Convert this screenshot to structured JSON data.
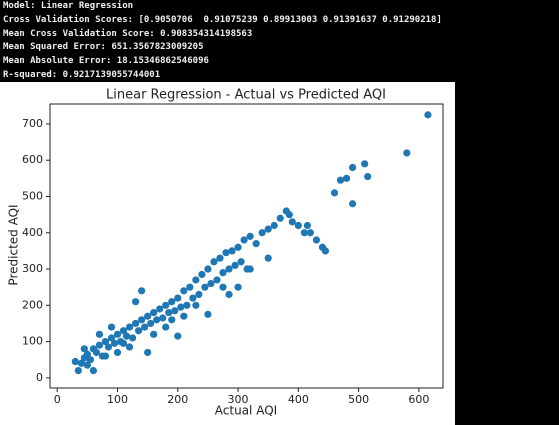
{
  "output_lines": [
    "Model: Linear Regression",
    "Cross Validation Scores: [0.9050706  0.91075239 0.89913003 0.91391637 0.91290218]",
    "Mean Cross Validation Score: 0.908354314198563",
    "Mean Squared Error: 651.3567823009205",
    "Mean Absolute Error: 18.15346862546096",
    "R-squared: 0.9217139055744001"
  ],
  "chart_data": {
    "type": "scatter",
    "title": "Linear Regression - Actual vs Predicted AQI",
    "x_label": "Actual AQI",
    "y_label": "Predicted AQI",
    "color": "#1f77b4",
    "x": [
      30,
      35,
      40,
      45,
      50,
      55,
      60,
      65,
      70,
      75,
      80,
      85,
      90,
      95,
      100,
      105,
      110,
      115,
      120,
      125,
      130,
      135,
      140,
      145,
      150,
      155,
      160,
      165,
      170,
      175,
      180,
      185,
      190,
      195,
      200,
      205,
      210,
      215,
      220,
      225,
      230,
      235,
      240,
      245,
      250,
      255,
      260,
      265,
      270,
      275,
      280,
      285,
      290,
      295,
      300,
      305,
      310,
      315,
      320,
      330,
      340,
      350,
      360,
      370,
      380,
      385,
      390,
      400,
      410,
      415,
      420,
      430,
      440,
      445,
      460,
      470,
      480,
      490,
      490,
      510,
      515,
      580,
      615,
      140,
      130,
      60,
      200,
      150,
      100,
      120,
      250,
      285,
      320,
      180,
      80,
      230,
      50,
      45,
      90,
      70,
      110,
      160,
      300,
      350,
      275,
      210,
      190
    ],
    "values": [
      45,
      20,
      40,
      55,
      65,
      50,
      80,
      70,
      90,
      60,
      100,
      85,
      110,
      95,
      120,
      100,
      130,
      115,
      140,
      110,
      150,
      130,
      160,
      140,
      170,
      150,
      180,
      160,
      190,
      165,
      200,
      180,
      210,
      185,
      220,
      195,
      240,
      200,
      250,
      220,
      270,
      230,
      285,
      250,
      300,
      260,
      320,
      270,
      330,
      290,
      345,
      300,
      350,
      310,
      360,
      320,
      380,
      300,
      390,
      370,
      400,
      410,
      420,
      440,
      460,
      450,
      430,
      420,
      400,
      420,
      400,
      380,
      360,
      350,
      510,
      545,
      550,
      480,
      580,
      590,
      555,
      620,
      725,
      240,
      210,
      20,
      115,
      70,
      70,
      85,
      175,
      230,
      300,
      140,
      60,
      200,
      35,
      80,
      140,
      120,
      95,
      120,
      250,
      330,
      250,
      170,
      160
    ],
    "xlim": [
      -12,
      640
    ],
    "ylim": [
      -28,
      755
    ],
    "xticks": [
      0,
      100,
      200,
      300,
      400,
      500,
      600
    ],
    "yticks": [
      0,
      100,
      200,
      300,
      400,
      500,
      600,
      700
    ]
  }
}
